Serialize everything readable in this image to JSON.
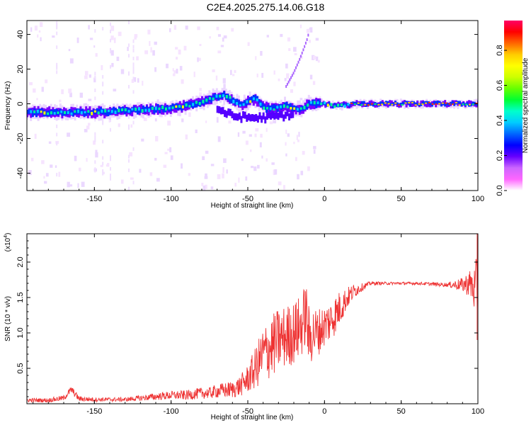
{
  "figure": {
    "title": "C2E4.2025.275.14.06.G18"
  },
  "chart_data": [
    {
      "type": "heatmap",
      "xlabel": "Height of straight line (km)",
      "ylabel": "Frequency (Hz)",
      "xlim": [
        -194,
        100
      ],
      "ylim": [
        -50,
        48
      ],
      "xticks": [
        -150,
        -100,
        -50,
        0,
        50,
        100
      ],
      "yticks": [
        -40,
        -20,
        0,
        20,
        40
      ],
      "colorbar": {
        "label": "Normalized spectral amplitude",
        "range": [
          0,
          0.97
        ],
        "ticks": [
          0.0,
          0.2,
          0.4,
          0.6,
          0.8
        ],
        "colors": [
          "#ffffff",
          "#ff66ff",
          "#cc66ff",
          "#6600ff",
          "#0000ff",
          "#0066ff",
          "#00ccff",
          "#00ffcc",
          "#00ff33",
          "#66ff00",
          "#ccff00",
          "#ffff00",
          "#ffcc00",
          "#ff6600",
          "#ff0000",
          "#ff0066"
        ]
      },
      "ridge": {
        "x": [
          -194,
          -170,
          -150,
          -130,
          -110,
          -95,
          -85,
          -80,
          -75,
          -70,
          -65,
          -60,
          -55,
          -50,
          -45,
          -40,
          -35,
          -30,
          -25,
          -20,
          -15,
          -10,
          -5,
          0,
          5,
          10,
          20,
          40,
          60,
          80,
          100
        ],
        "y": [
          -5,
          -5,
          -5,
          -4,
          -3,
          -2,
          0,
          1,
          3,
          4,
          5,
          2,
          -1,
          1,
          3,
          -2,
          -3,
          -2,
          -1,
          -3,
          -3,
          0,
          0,
          0,
          -1,
          -1,
          0,
          0,
          0,
          0,
          0
        ]
      },
      "lower_branch": {
        "x": [
          -70,
          -60,
          -50,
          -40,
          -30,
          -20
        ],
        "y": [
          -3,
          -7,
          -8,
          -8,
          -7,
          -6
        ]
      },
      "rising_trace": {
        "x": [
          -25,
          -20,
          -16,
          -13,
          -11,
          -10
        ],
        "y": [
          10,
          18,
          26,
          33,
          38,
          42
        ]
      }
    },
    {
      "type": "line",
      "xlabel": "Height of straight line (km)",
      "ylabel": "SNR (10 * v/v)",
      "scale_label": "(x10",
      "scale_exponent": "4",
      "scale_suffix": ")",
      "xlim": [
        -194,
        100
      ],
      "ylim": [
        0,
        2.4
      ],
      "xticks": [
        -150,
        -100,
        -50,
        0,
        50,
        100
      ],
      "yticks": [
        0.5,
        1.0,
        1.5,
        2.0
      ],
      "series": [
        {
          "name": "SNR",
          "color": "#ee3333",
          "x": [
            -194,
            -180,
            -170,
            -165,
            -160,
            -150,
            -140,
            -130,
            -120,
            -110,
            -100,
            -90,
            -80,
            -75,
            -70,
            -60,
            -55,
            -50,
            -45,
            -40,
            -35,
            -30,
            -25,
            -20,
            -15,
            -12,
            -10,
            -8,
            -5,
            0,
            5,
            10,
            15,
            20,
            25,
            30,
            40,
            60,
            80,
            90,
            95,
            98,
            100
          ],
          "y": [
            0.05,
            0.05,
            0.08,
            0.2,
            0.07,
            0.06,
            0.06,
            0.06,
            0.08,
            0.1,
            0.12,
            0.12,
            0.15,
            0.15,
            0.18,
            0.2,
            0.25,
            0.35,
            0.5,
            0.7,
            0.8,
            0.9,
            0.95,
            1.0,
            1.1,
            1.3,
            0.9,
            1.0,
            1.0,
            1.1,
            1.2,
            1.35,
            1.5,
            1.6,
            1.65,
            1.7,
            1.7,
            1.7,
            1.68,
            1.68,
            1.7,
            1.6,
            1.7
          ],
          "noise": [
            0.03,
            0.03,
            0.04,
            0.05,
            0.04,
            0.03,
            0.03,
            0.03,
            0.04,
            0.05,
            0.06,
            0.07,
            0.08,
            0.08,
            0.1,
            0.12,
            0.15,
            0.2,
            0.3,
            0.4,
            0.45,
            0.45,
            0.45,
            0.45,
            0.45,
            0.45,
            0.45,
            0.4,
            0.35,
            0.3,
            0.3,
            0.25,
            0.15,
            0.1,
            0.05,
            0.03,
            0.02,
            0.02,
            0.03,
            0.1,
            0.2,
            0.35,
            0.5
          ]
        }
      ]
    }
  ]
}
